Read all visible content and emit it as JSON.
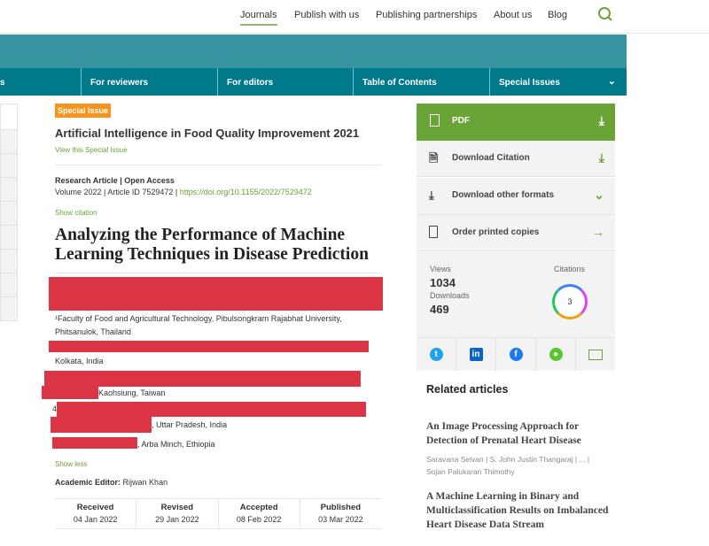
{
  "topnav": {
    "items": [
      "Journals",
      "Publish with us",
      "Publishing partnerships",
      "About us",
      "Blog"
    ],
    "active": "Journals"
  },
  "subnav": {
    "items": [
      "s",
      "For reviewers",
      "For editors",
      "Table of Contents",
      "Special Issues"
    ]
  },
  "article": {
    "badge": "Special Issue",
    "special_issue_title": "Artificial Intelligence in Food Quality Improvement 2021",
    "view_special_issue": "View this Special Issue",
    "type": "Research Article | Open Access",
    "volume": "Volume 2022 | Article ID 7529472 | ",
    "doi": "https://doi.org/10.1155/2022/7529472",
    "show_citation": "Show citation",
    "title": "Analyzing the Performance of Machine Learning Techniques in Disease Prediction",
    "affiliations": [
      "¹Faculty of Food and Agricultural Technology, Pibulsongkram Rajabhat University, Phitsanulok, Thailand",
      "Kolkata, India",
      "Kaohsiung, Taiwan",
      "4",
      ", Uttar Pradesh, India",
      ", Arba Minch, Ethiopia"
    ],
    "show_less": "Show less",
    "editor_label": "Academic Editor:",
    "editor_name": "Rijwan Khan",
    "dates": [
      {
        "label": "Received",
        "value": "04 Jan 2022"
      },
      {
        "label": "Revised",
        "value": "29 Jan 2022"
      },
      {
        "label": "Accepted",
        "value": "08 Feb 2022"
      },
      {
        "label": "Published",
        "value": "03 Mar 2022"
      }
    ]
  },
  "sidebar": {
    "pdf": "PDF",
    "download_citation": "Download Citation",
    "download_other": "Download other formats",
    "order_copies": "Order printed copies",
    "views_label": "Views",
    "views": "1034",
    "downloads_label": "Downloads",
    "downloads": "469",
    "citations_label": "Citations",
    "citations": "3",
    "share": [
      "twitter-icon",
      "linkedin-icon",
      "facebook-icon",
      "wechat-icon",
      "email-icon"
    ]
  },
  "related": {
    "heading": "Related articles",
    "items": [
      {
        "title": "An Image Processing Approach for Detection of Prenatal Heart Disease",
        "authors": "Saravana Selvan | S. John Justin Thangaraj | ... | Sojan Palukaran Thimothy"
      },
      {
        "title": "A Machine Learning in Binary and Multiclassification Results on Imbalanced Heart Disease Data Stream"
      }
    ]
  },
  "colors": {
    "teal": "#3795a2",
    "teal_dark": "#007a8a",
    "green": "#6aa336",
    "orange": "#f7941d",
    "redaction": "#dc3545"
  }
}
